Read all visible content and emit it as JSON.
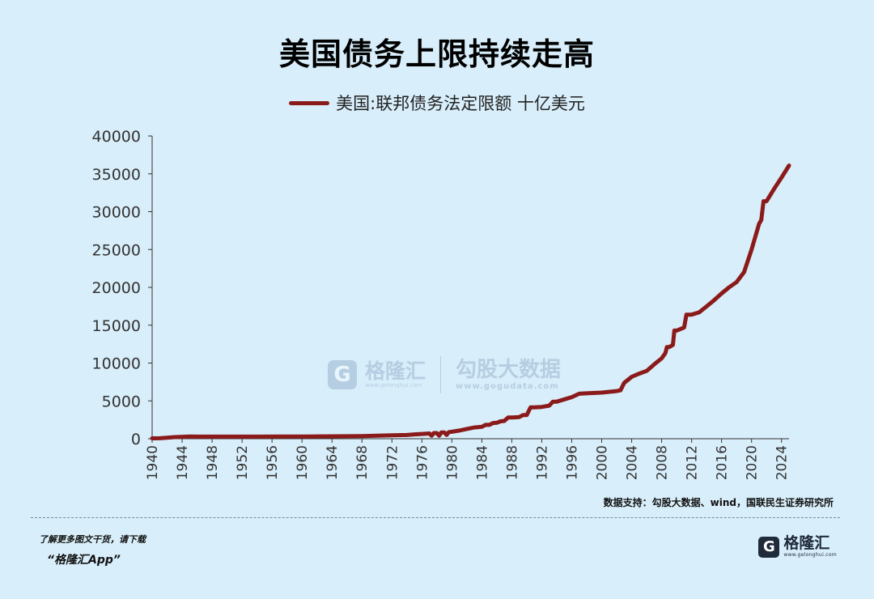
{
  "brand_color": "#8b1a1a",
  "chart_data": {
    "type": "line",
    "title": "美国债务上限持续走高",
    "legend_position": "top-center",
    "grid": false,
    "xlim": [
      1940,
      2025
    ],
    "ylim": [
      0,
      40000
    ],
    "x_ticks": [
      "1940",
      "1944",
      "1948",
      "1952",
      "1956",
      "1960",
      "1964",
      "1968",
      "1972",
      "1976",
      "1980",
      "1984",
      "1988",
      "1992",
      "1996",
      "2000",
      "2004",
      "2008",
      "2012",
      "2016",
      "2020",
      "2024"
    ],
    "y_ticks": [
      "0",
      "5000",
      "10000",
      "15000",
      "20000",
      "25000",
      "30000",
      "35000",
      "40000"
    ],
    "series": [
      {
        "name": "美国:联邦债务法定限额 十亿美元",
        "color": "#8b1a1a",
        "points": [
          [
            1940,
            49
          ],
          [
            1941,
            65
          ],
          [
            1942,
            125
          ],
          [
            1943,
            210
          ],
          [
            1944,
            260
          ],
          [
            1945,
            300
          ],
          [
            1946,
            275
          ],
          [
            1954,
            281
          ],
          [
            1958,
            288
          ],
          [
            1960,
            293
          ],
          [
            1962,
            308
          ],
          [
            1964,
            324
          ],
          [
            1966,
            330
          ],
          [
            1968,
            358
          ],
          [
            1970,
            395
          ],
          [
            1972,
            450
          ],
          [
            1974,
            495
          ],
          [
            1975,
            577
          ],
          [
            1976,
            636
          ],
          [
            1977,
            700
          ],
          [
            1977.3,
            400
          ],
          [
            1977.6,
            752
          ],
          [
            1978,
            752
          ],
          [
            1978.3,
            400
          ],
          [
            1978.6,
            830
          ],
          [
            1979,
            830
          ],
          [
            1979.3,
            500
          ],
          [
            1979.6,
            879
          ],
          [
            1980,
            925
          ],
          [
            1981,
            1080
          ],
          [
            1982,
            1290
          ],
          [
            1983,
            1490
          ],
          [
            1984,
            1573
          ],
          [
            1984.5,
            1824
          ],
          [
            1985,
            1824
          ],
          [
            1985.5,
            2079
          ],
          [
            1986,
            2111
          ],
          [
            1986.5,
            2300
          ],
          [
            1987,
            2352
          ],
          [
            1987.5,
            2800
          ],
          [
            1988,
            2800
          ],
          [
            1989,
            2870
          ],
          [
            1989.5,
            3123
          ],
          [
            1990,
            3123
          ],
          [
            1990.5,
            4145
          ],
          [
            1991,
            4145
          ],
          [
            1992,
            4200
          ],
          [
            1993,
            4370
          ],
          [
            1993.5,
            4900
          ],
          [
            1994,
            4900
          ],
          [
            1996,
            5500
          ],
          [
            1997,
            5950
          ],
          [
            1998,
            6000
          ],
          [
            2000,
            6100
          ],
          [
            2002,
            6300
          ],
          [
            2002.5,
            6400
          ],
          [
            2003,
            7384
          ],
          [
            2004,
            8184
          ],
          [
            2005,
            8600
          ],
          [
            2006,
            8965
          ],
          [
            2007,
            9815
          ],
          [
            2008,
            10615
          ],
          [
            2008.5,
            11315
          ],
          [
            2008.7,
            12104
          ],
          [
            2009,
            12104
          ],
          [
            2009.5,
            12394
          ],
          [
            2009.7,
            14294
          ],
          [
            2010,
            14294
          ],
          [
            2011,
            14694
          ],
          [
            2011.3,
            16394
          ],
          [
            2012,
            16394
          ],
          [
            2013,
            16699
          ],
          [
            2014,
            17500
          ],
          [
            2015,
            18300
          ],
          [
            2016,
            19200
          ],
          [
            2017,
            20000
          ],
          [
            2018,
            20700
          ],
          [
            2019,
            22000
          ],
          [
            2020,
            25000
          ],
          [
            2021,
            28401
          ],
          [
            2021.3,
            28900
          ],
          [
            2021.6,
            31381
          ],
          [
            2022,
            31381
          ],
          [
            2023,
            33000
          ],
          [
            2024,
            34500
          ],
          [
            2025,
            36100
          ]
        ]
      }
    ]
  },
  "source_text": "数据支持：勾股大数据、wind，国联民生证券研究所",
  "promo_line1": "了解更多图文干货，请下载",
  "promo_line2": "“格隆汇App”",
  "brand": {
    "logo_letter": "G",
    "name": "格隆汇",
    "url": "www.gelonghui.com"
  },
  "watermark": {
    "logo_letter": "G",
    "name": "格隆汇",
    "url": "www.gelonghui.com",
    "partner_name": "勾股大数据",
    "partner_url": "www.gogudata.com"
  }
}
